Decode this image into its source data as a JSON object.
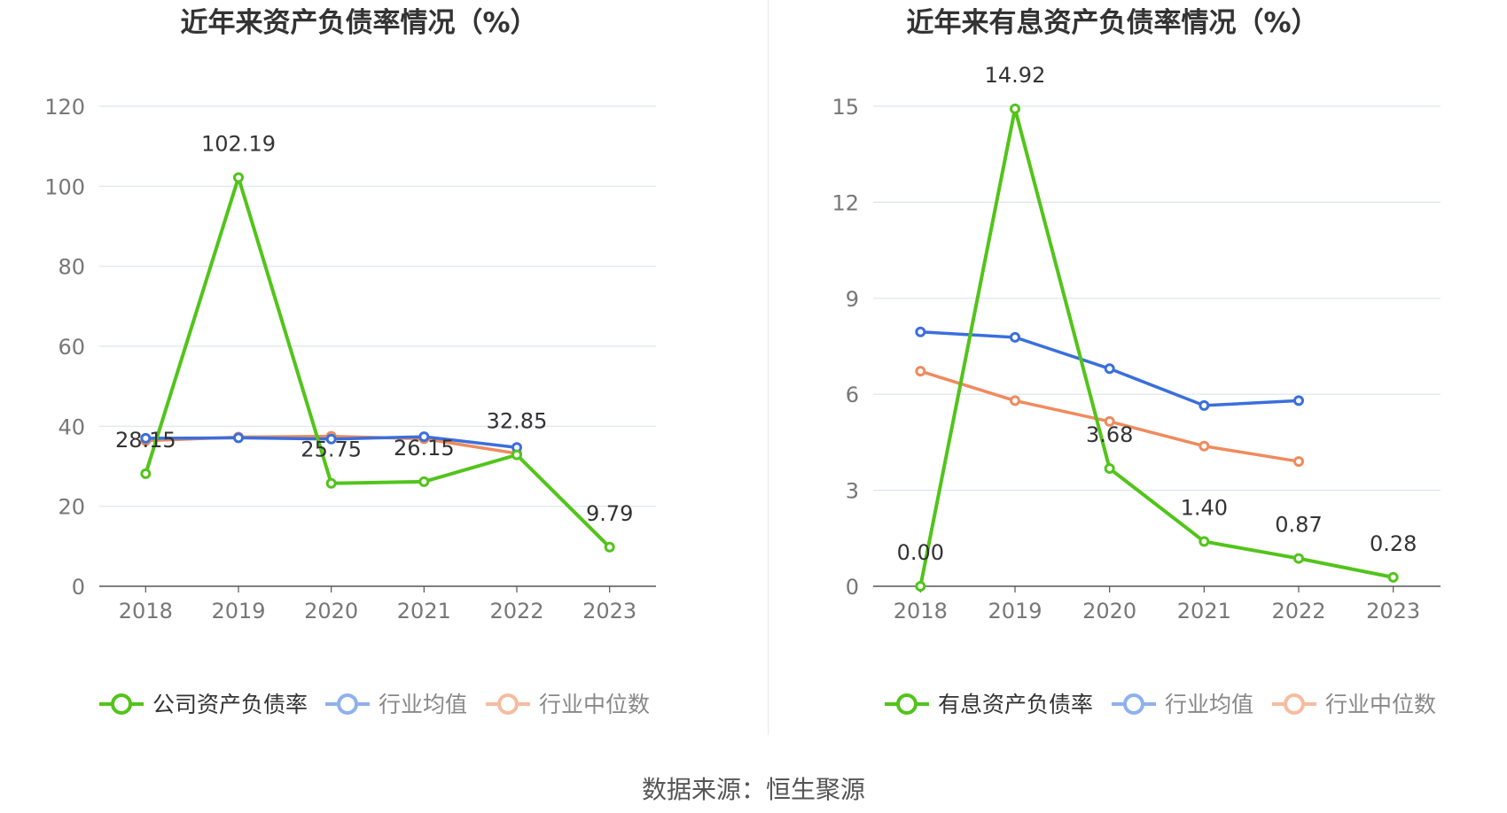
{
  "footer": {
    "source": "数据来源：恒生聚源"
  },
  "colors": {
    "company": "#52c41a",
    "industry_avg": "#3a6fdc",
    "industry_median": "#f08a5d",
    "legend_avg": "#8fb0ee",
    "legend_median": "#f6bba0"
  },
  "chart_data": [
    {
      "type": "line",
      "title": "近年来资产负债率情况（%）",
      "categories": [
        "2018",
        "2019",
        "2020",
        "2021",
        "2022",
        "2023"
      ],
      "ylim": [
        0,
        120
      ],
      "yticks": [
        0,
        20,
        40,
        60,
        80,
        100,
        120
      ],
      "grid": true,
      "legend_position": "bottom",
      "series": [
        {
          "name": "公司资产负债率",
          "key": "company",
          "values": [
            28.15,
            102.19,
            25.75,
            26.15,
            32.85,
            9.79
          ],
          "labels": [
            "28.15",
            "102.19",
            "25.75",
            "26.15",
            "32.85",
            "9.79"
          ]
        },
        {
          "name": "行业均值",
          "key": "industry_avg",
          "values": [
            37.0,
            37.1,
            36.8,
            37.4,
            34.7,
            null
          ]
        },
        {
          "name": "行业中位数",
          "key": "industry_median",
          "values": [
            36.4,
            37.3,
            37.5,
            36.9,
            33.2,
            null
          ]
        }
      ]
    },
    {
      "type": "line",
      "title": "近年来有息资产负债率情况（%）",
      "categories": [
        "2018",
        "2019",
        "2020",
        "2021",
        "2022",
        "2023"
      ],
      "ylim": [
        0,
        15
      ],
      "yticks": [
        0,
        3,
        6,
        9,
        12,
        15
      ],
      "grid": true,
      "legend_position": "bottom",
      "series": [
        {
          "name": "有息资产负债率",
          "key": "company",
          "values": [
            0.0,
            14.92,
            3.68,
            1.4,
            0.87,
            0.28
          ],
          "labels": [
            "0.00",
            "14.92",
            "3.68",
            "1.40",
            "0.87",
            "0.28"
          ]
        },
        {
          "name": "行业均值",
          "key": "industry_avg",
          "values": [
            7.95,
            7.78,
            6.8,
            5.65,
            5.8,
            null
          ]
        },
        {
          "name": "行业中位数",
          "key": "industry_median",
          "values": [
            6.72,
            5.8,
            5.15,
            4.38,
            3.9,
            null
          ]
        }
      ]
    }
  ]
}
